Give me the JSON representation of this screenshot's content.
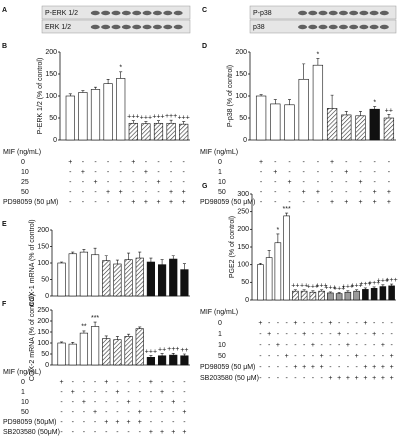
{
  "chart_data": [
    {
      "type": "blot",
      "label": "A",
      "blot_labels": [
        "P-ERK 1/2",
        "ERK 1/2"
      ]
    },
    {
      "type": "bar",
      "label": "B",
      "ylabel": "P-ERK 1/2 (% of control)",
      "ylim": [
        0,
        200
      ],
      "yticks": [
        0,
        50,
        100,
        150,
        200
      ],
      "values": [
        100,
        108,
        115,
        128,
        140,
        38,
        37,
        38,
        38,
        36
      ],
      "errors": [
        5,
        4,
        5,
        10,
        15,
        6,
        5,
        6,
        7,
        6
      ],
      "bar_styles": [
        "white",
        "white",
        "white",
        "white",
        "white",
        "hatched",
        "hatched",
        "hatched",
        "hatched",
        "hatched"
      ],
      "significance": [
        null,
        null,
        null,
        null,
        "*",
        "+++",
        "+++",
        "+++",
        "+++",
        "+++"
      ],
      "row_group": "MIF (ng/mL)",
      "rows": [
        {
          "label": "0",
          "cells": [
            "+",
            "-",
            "-",
            "-",
            "-",
            "+",
            "-",
            "-",
            "-",
            "-"
          ]
        },
        {
          "label": "10",
          "cells": [
            "-",
            "+",
            "-",
            "-",
            "-",
            "-",
            "+",
            "-",
            "-",
            "-"
          ]
        },
        {
          "label": "25",
          "cells": [
            "-",
            "-",
            "+",
            "-",
            "-",
            "-",
            "-",
            "+",
            "-",
            "-"
          ]
        },
        {
          "label": "50",
          "cells": [
            "-",
            "-",
            "-",
            "+",
            "+",
            "-",
            "-",
            "-",
            "+",
            "+"
          ]
        },
        {
          "label": "PD98059 (50 μM)",
          "cells": [
            "-",
            "-",
            "-",
            "-",
            "-",
            "+",
            "+",
            "+",
            "+",
            "+"
          ]
        }
      ]
    },
    {
      "type": "blot",
      "label": "C",
      "blot_labels": [
        "P-p38",
        "p38"
      ]
    },
    {
      "type": "bar",
      "label": "D",
      "ylabel": "P-p38 (% of control)",
      "ylim": [
        0,
        200
      ],
      "yticks": [
        0,
        50,
        100,
        150,
        200
      ],
      "values": [
        100,
        82,
        80,
        138,
        170,
        72,
        57,
        55,
        70,
        50
      ],
      "errors": [
        3,
        10,
        12,
        35,
        15,
        30,
        8,
        10,
        6,
        8
      ],
      "bar_styles": [
        "white",
        "white",
        "white",
        "white",
        "white",
        "hatched",
        "hatched",
        "hatched",
        "black",
        "hatched"
      ],
      "significance": [
        null,
        null,
        null,
        null,
        "*",
        null,
        null,
        null,
        "*",
        "++"
      ],
      "row_group": "MIF (ng/mL)",
      "rows": [
        {
          "label": "0",
          "cells": [
            "+",
            "-",
            "-",
            "-",
            "-",
            "+",
            "-",
            "-",
            "-",
            "-"
          ]
        },
        {
          "label": "1",
          "cells": [
            "-",
            "+",
            "-",
            "-",
            "-",
            "-",
            "+",
            "-",
            "-",
            "-"
          ]
        },
        {
          "label": "10",
          "cells": [
            "-",
            "-",
            "+",
            "-",
            "-",
            "-",
            "-",
            "+",
            "-",
            "-"
          ]
        },
        {
          "label": "50",
          "cells": [
            "-",
            "-",
            "-",
            "+",
            "+",
            "-",
            "-",
            "-",
            "+",
            "+"
          ]
        },
        {
          "label": "PD98059 (50 μM)",
          "cells": [
            "-",
            "-",
            "-",
            "-",
            "-",
            "+",
            "+",
            "+",
            "+",
            "+"
          ]
        }
      ]
    },
    {
      "type": "bar",
      "label": "E",
      "ylabel": "COX-1 mRNA (% of control)",
      "ylim": [
        0,
        200
      ],
      "yticks": [
        0,
        50,
        100,
        150,
        200
      ],
      "values": [
        100,
        128,
        133,
        125,
        107,
        97,
        110,
        115,
        103,
        95,
        112,
        80
      ],
      "errors": [
        3,
        5,
        8,
        20,
        15,
        12,
        20,
        18,
        12,
        15,
        10,
        18
      ],
      "bar_styles": [
        "white",
        "white",
        "white",
        "white",
        "hatched",
        "hatched",
        "hatched",
        "hatched",
        "black",
        "black",
        "black",
        "black"
      ]
    },
    {
      "type": "bar",
      "label": "F",
      "ylabel": "COX-2 mRNA (% of control)",
      "ylim": [
        0,
        250
      ],
      "yticks": [
        0,
        50,
        100,
        150,
        200,
        250
      ],
      "values": [
        100,
        95,
        145,
        175,
        120,
        115,
        130,
        165,
        35,
        42,
        45,
        42
      ],
      "errors": [
        5,
        8,
        10,
        20,
        12,
        15,
        10,
        8,
        8,
        10,
        8,
        8
      ],
      "bar_styles": [
        "white",
        "white",
        "white",
        "white",
        "hatched",
        "hatched",
        "hatched",
        "hatched",
        "black",
        "black",
        "black",
        "black"
      ],
      "significance": [
        null,
        null,
        "**",
        "***",
        null,
        null,
        null,
        null,
        "+++",
        "++",
        "+++",
        "++"
      ],
      "row_group": "MIF (ng/mL)",
      "rows": [
        {
          "label": "0",
          "cells": [
            "+",
            "-",
            "-",
            "-",
            "+",
            "-",
            "-",
            "-",
            "+",
            "-",
            "-",
            "-"
          ]
        },
        {
          "label": "1",
          "cells": [
            "-",
            "+",
            "-",
            "-",
            "-",
            "+",
            "-",
            "-",
            "-",
            "+",
            "-",
            "-"
          ]
        },
        {
          "label": "10",
          "cells": [
            "-",
            "-",
            "+",
            "-",
            "-",
            "-",
            "+",
            "-",
            "-",
            "-",
            "+",
            "-"
          ]
        },
        {
          "label": "50",
          "cells": [
            "-",
            "-",
            "-",
            "+",
            "-",
            "-",
            "-",
            "+",
            "-",
            "-",
            "-",
            "+"
          ]
        },
        {
          "label": "PD98059 (50μM)",
          "cells": [
            "-",
            "-",
            "-",
            "-",
            "+",
            "+",
            "+",
            "+",
            "-",
            "-",
            "-",
            "-"
          ]
        },
        {
          "label": "SB203580 (50μM)",
          "cells": [
            "-",
            "-",
            "-",
            "-",
            "-",
            "-",
            "-",
            "-",
            "+",
            "+",
            "+",
            "+"
          ]
        }
      ]
    },
    {
      "type": "bar",
      "label": "G",
      "ylabel": "PGE2 (% of control)",
      "ylim": [
        0,
        300
      ],
      "yticks": [
        0,
        50,
        100,
        150,
        200,
        250,
        300
      ],
      "values": [
        100,
        120,
        162,
        238,
        25,
        25,
        22,
        25,
        20,
        18,
        22,
        25,
        30,
        33,
        38,
        40
      ],
      "errors": [
        4,
        20,
        25,
        8,
        4,
        4,
        4,
        4,
        3,
        3,
        4,
        4,
        4,
        4,
        5,
        5
      ],
      "bar_styles": [
        "white",
        "white",
        "white",
        "white",
        "hatched",
        "hatched",
        "hatched",
        "hatched",
        "grey",
        "grey",
        "grey",
        "grey",
        "black",
        "black",
        "black",
        "black"
      ],
      "significance": [
        null,
        null,
        "*",
        "***",
        "++",
        "++",
        "+++",
        "+++",
        "+++",
        "+++",
        "+++",
        "+++",
        "+++",
        "+++",
        "+++",
        "+++"
      ],
      "row_group": "MIF (ng/mL)",
      "rows": [
        {
          "label": "0",
          "cells": [
            "+",
            "-",
            "-",
            "-",
            "+",
            "-",
            "-",
            "-",
            "+",
            "-",
            "-",
            "-",
            "+",
            "-",
            "-",
            "-"
          ]
        },
        {
          "label": "1",
          "cells": [
            "-",
            "+",
            "-",
            "-",
            "-",
            "+",
            "-",
            "-",
            "-",
            "+",
            "-",
            "-",
            "-",
            "+",
            "-",
            "-"
          ]
        },
        {
          "label": "10",
          "cells": [
            "-",
            "-",
            "+",
            "-",
            "-",
            "-",
            "+",
            "-",
            "-",
            "-",
            "+",
            "-",
            "-",
            "-",
            "+",
            "-"
          ]
        },
        {
          "label": "50",
          "cells": [
            "-",
            "-",
            "-",
            "+",
            "-",
            "-",
            "-",
            "+",
            "-",
            "-",
            "-",
            "+",
            "-",
            "-",
            "-",
            "+"
          ]
        },
        {
          "label": "PD98059 (50 μM)",
          "cells": [
            "-",
            "-",
            "-",
            "-",
            "+",
            "+",
            "+",
            "+",
            "-",
            "-",
            "-",
            "-",
            "+",
            "+",
            "+",
            "+"
          ]
        },
        {
          "label": "SB203580 (50 μM)",
          "cells": [
            "-",
            "-",
            "-",
            "-",
            "-",
            "-",
            "-",
            "-",
            "+",
            "+",
            "+",
            "+",
            "+",
            "+",
            "+",
            "+"
          ]
        }
      ]
    }
  ]
}
